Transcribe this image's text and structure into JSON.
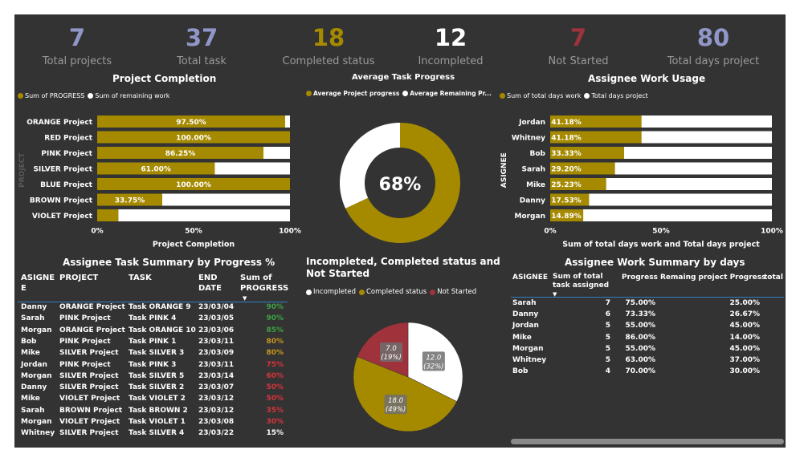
{
  "colors": {
    "gold": "#a58a00",
    "white": "#ffffff",
    "red": "#a0323c",
    "bg": "#333333",
    "green": "#3ea243",
    "orange": "#c8961e",
    "redtext": "#d6343c",
    "kpi_blue": "#9196c8",
    "kpi_red": "#a0323c"
  },
  "kpis": [
    {
      "value": "7",
      "label": "Total projects",
      "color": "#9196c8"
    },
    {
      "value": "37",
      "label": "Total task",
      "color": "#9196c8"
    },
    {
      "value": "18",
      "label": "Completed status",
      "color": "#a58a00"
    },
    {
      "value": "12",
      "label": "Incompleted",
      "color": "#ffffff"
    },
    {
      "value": "7",
      "label": "Not Started",
      "color": "#a0323c"
    },
    {
      "value": "80",
      "label": "Total days project",
      "color": "#9196c8"
    }
  ],
  "project_completion": {
    "title": "Project Completion",
    "legend": [
      "Sum of PROGRESS",
      "Sum of remaining work"
    ],
    "y_axis_label": "PROJECT",
    "x_axis_label": "Project Completion",
    "ticks": [
      "0%",
      "50%",
      "100%"
    ]
  },
  "avg_task_progress": {
    "title": "Average Task Progress",
    "legend": [
      "Average Project progress",
      "Average Remaining Pr..."
    ],
    "center_label": "68%"
  },
  "assignee_usage": {
    "title": "Assignee Work Usage",
    "legend": [
      "Sum of total days work",
      "Total days project"
    ],
    "y_axis_label": "ASIGNEE",
    "x_axis_label": "Sum of total days work and Total days project",
    "ticks": [
      "0%",
      "50%",
      "100%"
    ]
  },
  "task_summary": {
    "title": "Assignee Task Summary by Progress %",
    "headers": [
      "ASIGNE E",
      "PROJECT",
      "TASK",
      "END DATE",
      "Sum of PROGRESS"
    ],
    "rows": [
      {
        "asignee": "Danny",
        "project": "ORANGE Project",
        "task": "Task ORANGE 9",
        "end": "23/03/04",
        "progress": "90%",
        "color": "#3ea243"
      },
      {
        "asignee": "Sarah",
        "project": "PINK Project",
        "task": "Task PINK 4",
        "end": "23/03/05",
        "progress": "90%",
        "color": "#3ea243"
      },
      {
        "asignee": "Morgan",
        "project": "ORANGE Project",
        "task": "Task ORANGE 10",
        "end": "23/03/06",
        "progress": "85%",
        "color": "#3ea243"
      },
      {
        "asignee": "Bob",
        "project": "PINK Project",
        "task": "Task PINK 1",
        "end": "23/03/11",
        "progress": "80%",
        "color": "#c8961e"
      },
      {
        "asignee": "Mike",
        "project": "SILVER Project",
        "task": "Task SILVER 3",
        "end": "23/03/09",
        "progress": "80%",
        "color": "#c8961e"
      },
      {
        "asignee": "Jordan",
        "project": "PINK Project",
        "task": "Task PINK 3",
        "end": "23/03/11",
        "progress": "75%",
        "color": "#d6343c"
      },
      {
        "asignee": "Morgan",
        "project": "SILVER Project",
        "task": "Task SILVER 5",
        "end": "23/03/14",
        "progress": "60%",
        "color": "#d6343c"
      },
      {
        "asignee": "Danny",
        "project": "SILVER Project",
        "task": "Task SILVER 2",
        "end": "23/03/07",
        "progress": "50%",
        "color": "#d6343c"
      },
      {
        "asignee": "Mike",
        "project": "VIOLET Project",
        "task": "Task VIOLET 2",
        "end": "23/03/12",
        "progress": "50%",
        "color": "#d6343c"
      },
      {
        "asignee": "Sarah",
        "project": "BROWN Project",
        "task": "Task BROWN 2",
        "end": "23/03/12",
        "progress": "35%",
        "color": "#d6343c"
      },
      {
        "asignee": "Morgan",
        "project": "VIOLET Project",
        "task": "Task VIOLET 1",
        "end": "23/03/08",
        "progress": "30%",
        "color": "#d6343c"
      },
      {
        "asignee": "Whitney",
        "project": "SILVER Project",
        "task": "Task SILVER 4",
        "end": "23/03/22",
        "progress": "15%",
        "color": "#ffffff"
      }
    ]
  },
  "status_pie": {
    "title": "Incompleted, Completed status and Not Started",
    "legend": [
      "Incompleted",
      "Completed status",
      "Not Started"
    ],
    "labels": [
      {
        "value": "12.0",
        "pct": "(32%)"
      },
      {
        "value": "18.0",
        "pct": "(49%)"
      },
      {
        "value": "7.0",
        "pct": "(19%)"
      }
    ]
  },
  "work_summary": {
    "title": "Assignee Work Summary by days",
    "headers": [
      "ASIGNEE",
      "Sum of total task assigned",
      "Progress",
      "Remaing project Progress",
      "total"
    ],
    "rows": [
      {
        "asignee": "Sarah",
        "tasks": "7",
        "progress": "75.00%",
        "remaining": "25.00%"
      },
      {
        "asignee": "Danny",
        "tasks": "6",
        "progress": "73.33%",
        "remaining": "26.67%"
      },
      {
        "asignee": "Jordan",
        "tasks": "5",
        "progress": "55.00%",
        "remaining": "45.00%"
      },
      {
        "asignee": "Mike",
        "tasks": "5",
        "progress": "86.00%",
        "remaining": "14.00%"
      },
      {
        "asignee": "Morgan",
        "tasks": "5",
        "progress": "55.00%",
        "remaining": "45.00%"
      },
      {
        "asignee": "Whitney",
        "tasks": "5",
        "progress": "63.00%",
        "remaining": "37.00%"
      },
      {
        "asignee": "Bob",
        "tasks": "4",
        "progress": "70.00%",
        "remaining": "30.00%"
      }
    ]
  },
  "chart_data": [
    {
      "type": "bar",
      "orientation": "horizontal",
      "stacked": true,
      "title": "Project Completion",
      "xlabel": "Project Completion",
      "ylabel": "PROJECT",
      "xlim": [
        0,
        100
      ],
      "categories": [
        "ORANGE Project",
        "RED Project",
        "PINK Project",
        "SILVER Project",
        "BLUE Project",
        "BROWN Project",
        "VIOLET Project"
      ],
      "series": [
        {
          "name": "Sum of PROGRESS",
          "values": [
            97.5,
            100,
            86.25,
            61,
            100,
            33.75,
            11
          ],
          "labels": [
            "97.50%",
            "100.00%",
            "86.25%",
            "61.00%",
            "100.00%",
            "33.75%",
            ""
          ],
          "color": "#a58a00"
        },
        {
          "name": "Sum of remaining work",
          "values": [
            2.5,
            0,
            13.75,
            39,
            0,
            66.25,
            89
          ],
          "color": "#ffffff"
        }
      ],
      "legend": "top-left"
    },
    {
      "type": "pie",
      "donut": true,
      "title": "Average Task Progress",
      "categories": [
        "Average Project progress",
        "Average Remaining Pr..."
      ],
      "values": [
        68,
        32
      ],
      "colors": [
        "#a58a00",
        "#ffffff"
      ]
    },
    {
      "type": "bar",
      "orientation": "horizontal",
      "stacked": true,
      "title": "Assignee Work Usage",
      "xlabel": "Sum of total days work and Total days project",
      "ylabel": "ASIGNEE",
      "xlim": [
        0,
        100
      ],
      "categories": [
        "Jordan",
        "Whitney",
        "Bob",
        "Sarah",
        "Mike",
        "Danny",
        "Morgan"
      ],
      "series": [
        {
          "name": "Sum of total days work",
          "values": [
            41.18,
            41.18,
            33.33,
            29.2,
            25.23,
            17.53,
            14.89
          ],
          "labels": [
            "41.18%",
            "41.18%",
            "33.33%",
            "29.20%",
            "25.23%",
            "17.53%",
            "14.89%"
          ],
          "color": "#a58a00"
        },
        {
          "name": "Total days project",
          "values": [
            58.82,
            58.82,
            66.67,
            70.8,
            74.77,
            82.47,
            85.11
          ],
          "color": "#ffffff"
        }
      ]
    },
    {
      "type": "pie",
      "title": "Incompleted, Completed status and Not Started",
      "categories": [
        "Incompleted",
        "Completed status",
        "Not Started"
      ],
      "values": [
        12,
        18,
        7
      ],
      "colors": [
        "#ffffff",
        "#a58a00",
        "#a0323c"
      ]
    }
  ]
}
